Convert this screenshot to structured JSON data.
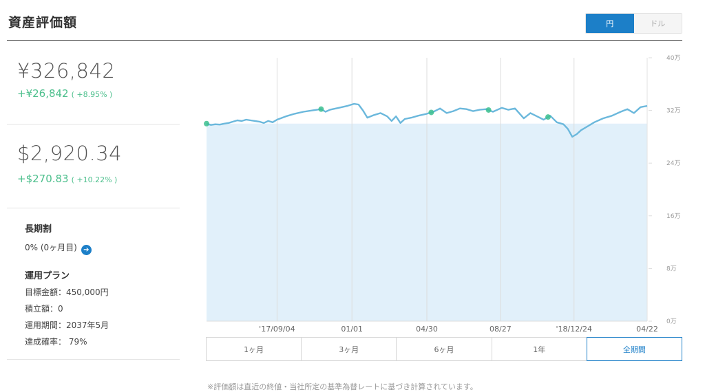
{
  "header": {
    "title": "資産評価額",
    "currency_options": [
      {
        "label": "円",
        "active": true
      },
      {
        "label": "ドル",
        "active": false
      }
    ]
  },
  "summary": {
    "jpy": {
      "value": "¥326,842",
      "change": "+¥26,842",
      "change_pct": "( +8.95% )"
    },
    "usd": {
      "value": "$2,920.34",
      "change": "+$270.83",
      "change_pct": "( +10.22% )"
    }
  },
  "long_term": {
    "heading": "長期割",
    "value": "0% (0ヶ月目)",
    "arrow_icon": "arrow-right-icon"
  },
  "plan": {
    "heading": "運用プラン",
    "rows": [
      "目標金額：450,000円",
      "積立額：0",
      "運用期間：2037年5月",
      "達成確率： 79%"
    ]
  },
  "periods": [
    {
      "label": "1ヶ月",
      "active": false
    },
    {
      "label": "3ヶ月",
      "active": false
    },
    {
      "label": "6ヶ月",
      "active": false
    },
    {
      "label": "1年",
      "active": false
    },
    {
      "label": "全期間",
      "active": true
    }
  ],
  "footnote": "※評価額は直近の終値・当社所定の基準為替レートに基づき計算されています。",
  "colors": {
    "accent": "#1c7fc8",
    "gain": "#4cbf8c",
    "line": "#6bb8dc",
    "fill": "#e1f0fa",
    "marker": "#3cbf8f"
  },
  "chart_data": {
    "type": "area",
    "y_ticks": [
      "40万",
      "32万",
      "24万",
      "16万",
      "8万",
      "0万"
    ],
    "y_tick_values": [
      400000,
      320000,
      240000,
      160000,
      80000,
      0
    ],
    "ylim": [
      0,
      400000
    ],
    "x_ticks": [
      "'17/09/04",
      "01/01",
      "04/30",
      "08/27",
      "'18/12/24",
      "04/22"
    ],
    "x_tick_positions": [
      0.16,
      0.33,
      0.5,
      0.667,
      0.834,
      1.0
    ],
    "baseline": 300000,
    "series": [
      {
        "values": [
          [
            0.0,
            300000
          ],
          [
            0.01,
            298000
          ],
          [
            0.02,
            299000
          ],
          [
            0.03,
            298500
          ],
          [
            0.04,
            300000
          ],
          [
            0.05,
            301000
          ],
          [
            0.06,
            303000
          ],
          [
            0.07,
            305000
          ],
          [
            0.08,
            304000
          ],
          [
            0.09,
            306000
          ],
          [
            0.1,
            305000
          ],
          [
            0.11,
            304000
          ],
          [
            0.12,
            303000
          ],
          [
            0.13,
            301000
          ],
          [
            0.14,
            304000
          ],
          [
            0.15,
            302000
          ],
          [
            0.16,
            306000
          ],
          [
            0.18,
            311000
          ],
          [
            0.2,
            315000
          ],
          [
            0.22,
            318000
          ],
          [
            0.24,
            320000
          ],
          [
            0.26,
            322000
          ],
          [
            0.27,
            318000
          ],
          [
            0.28,
            321000
          ],
          [
            0.3,
            324000
          ],
          [
            0.32,
            327000
          ],
          [
            0.335,
            330000
          ],
          [
            0.345,
            329000
          ],
          [
            0.355,
            320000
          ],
          [
            0.365,
            309000
          ],
          [
            0.38,
            313000
          ],
          [
            0.395,
            316000
          ],
          [
            0.41,
            311000
          ],
          [
            0.42,
            304000
          ],
          [
            0.43,
            311000
          ],
          [
            0.44,
            301000
          ],
          [
            0.45,
            307000
          ],
          [
            0.465,
            309000
          ],
          [
            0.48,
            312000
          ],
          [
            0.5,
            315000
          ],
          [
            0.515,
            318000
          ],
          [
            0.53,
            323000
          ],
          [
            0.545,
            316000
          ],
          [
            0.56,
            319000
          ],
          [
            0.575,
            323000
          ],
          [
            0.59,
            322000
          ],
          [
            0.605,
            319000
          ],
          [
            0.62,
            321000
          ],
          [
            0.635,
            322000
          ],
          [
            0.65,
            318000
          ],
          [
            0.67,
            324000
          ],
          [
            0.685,
            321000
          ],
          [
            0.7,
            323000
          ],
          [
            0.72,
            308000
          ],
          [
            0.735,
            316000
          ],
          [
            0.75,
            311000
          ],
          [
            0.765,
            306000
          ],
          [
            0.78,
            312000
          ],
          [
            0.795,
            302000
          ],
          [
            0.81,
            299000
          ],
          [
            0.82,
            292000
          ],
          [
            0.83,
            280000
          ],
          [
            0.84,
            284000
          ],
          [
            0.85,
            290000
          ],
          [
            0.865,
            296000
          ],
          [
            0.88,
            302000
          ],
          [
            0.9,
            308000
          ],
          [
            0.92,
            312000
          ],
          [
            0.94,
            318000
          ],
          [
            0.955,
            322000
          ],
          [
            0.97,
            316000
          ],
          [
            0.985,
            325000
          ],
          [
            1.0,
            326842
          ]
        ]
      }
    ],
    "markers": [
      0.0,
      0.26,
      0.51,
      0.64,
      0.775
    ]
  }
}
